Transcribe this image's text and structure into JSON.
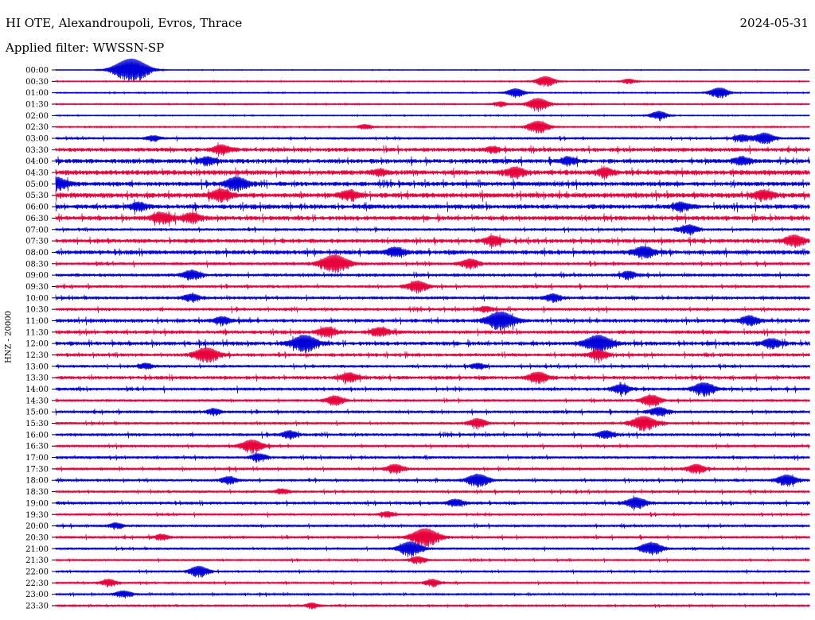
{
  "header": {
    "station": "HI OTE, Alexandroupoli, Evros, Thrace",
    "date": "2024-05-31",
    "filter": "Applied filter: WWSSN-SP"
  },
  "colors": {
    "odd": "#0000d8",
    "even": "#e8003c"
  },
  "chart_data": {
    "type": "line",
    "title": "HI OTE, Alexandroupoli, Evros, Thrace",
    "ylabel": "HNZ - 20000",
    "tick_labels": [
      "00:00",
      "00:30",
      "01:00",
      "01:30",
      "02:00",
      "02:30",
      "03:00",
      "03:30",
      "04:00",
      "04:30",
      "05:00",
      "05:30",
      "06:00",
      "06:30",
      "07:00",
      "07:30",
      "08:00",
      "08:30",
      "09:00",
      "09:30",
      "10:00",
      "10:30",
      "11:00",
      "11:30",
      "12:00",
      "12:30",
      "13:00",
      "13:30",
      "14:00",
      "14:30",
      "15:00",
      "15:30",
      "16:00",
      "16:30",
      "17:00",
      "17:30",
      "18:00",
      "18:30",
      "19:00",
      "19:30",
      "20:00",
      "20:30",
      "21:00",
      "21:30",
      "22:00",
      "22:30",
      "23:00",
      "23:30"
    ],
    "noise_level": [
      0.3,
      0.5,
      0.5,
      0.6,
      0.5,
      0.7,
      1.2,
      2.0,
      2.2,
      2.5,
      2.2,
      2.5,
      2.3,
      2.2,
      1.4,
      2.0,
      2.2,
      1.5,
      1.6,
      1.5,
      1.6,
      1.5,
      1.8,
      1.8,
      2.0,
      1.7,
      1.4,
      1.8,
      1.6,
      1.3,
      1.5,
      1.4,
      1.5,
      1.3,
      1.4,
      1.3,
      1.3,
      1.3,
      1.5,
      1.2,
      1.3,
      1.3,
      1.2,
      1.0,
      1.0,
      1.0,
      1.0,
      0.9
    ],
    "events": [
      [
        [
          0.1,
          14
        ]
      ],
      [
        [
          0.65,
          6
        ],
        [
          0.76,
          3
        ]
      ],
      [
        [
          0.61,
          5
        ],
        [
          0.88,
          6
        ]
      ],
      [
        [
          0.59,
          3
        ],
        [
          0.64,
          7
        ]
      ],
      [
        [
          0.8,
          5
        ]
      ],
      [
        [
          0.64,
          7
        ],
        [
          0.41,
          3
        ]
      ],
      [
        [
          0.94,
          6
        ],
        [
          0.91,
          4
        ],
        [
          0.13,
          3
        ]
      ],
      [
        [
          0.22,
          5
        ],
        [
          0.58,
          3
        ]
      ],
      [
        [
          0.2,
          4
        ],
        [
          0.68,
          4
        ],
        [
          0.91,
          4
        ]
      ],
      [
        [
          0.61,
          5
        ],
        [
          0.73,
          4
        ],
        [
          0.43,
          3
        ]
      ],
      [
        [
          0.0,
          7
        ],
        [
          0.24,
          7
        ]
      ],
      [
        [
          0.22,
          6
        ],
        [
          0.39,
          5
        ],
        [
          0.94,
          5
        ]
      ],
      [
        [
          0.11,
          4
        ],
        [
          0.83,
          4
        ]
      ],
      [
        [
          0.14,
          6
        ],
        [
          0.18,
          5
        ]
      ],
      [
        [
          0.84,
          5
        ]
      ],
      [
        [
          0.58,
          5
        ],
        [
          0.98,
          6
        ]
      ],
      [
        [
          0.45,
          5
        ],
        [
          0.78,
          6
        ]
      ],
      [
        [
          0.37,
          10
        ],
        [
          0.55,
          5
        ]
      ],
      [
        [
          0.18,
          5
        ],
        [
          0.76,
          4
        ]
      ],
      [
        [
          0.48,
          6
        ]
      ],
      [
        [
          0.18,
          4
        ],
        [
          0.66,
          4
        ]
      ],
      [
        [
          0.57,
          3
        ]
      ],
      [
        [
          0.59,
          10
        ],
        [
          0.22,
          4
        ],
        [
          0.92,
          5
        ]
      ],
      [
        [
          0.36,
          5
        ],
        [
          0.43,
          5
        ]
      ],
      [
        [
          0.33,
          9
        ],
        [
          0.72,
          9
        ],
        [
          0.95,
          5
        ]
      ],
      [
        [
          0.2,
          8
        ],
        [
          0.72,
          5
        ]
      ],
      [
        [
          0.12,
          3
        ],
        [
          0.56,
          3
        ]
      ],
      [
        [
          0.39,
          5
        ],
        [
          0.64,
          6
        ]
      ],
      [
        [
          0.75,
          5
        ],
        [
          0.86,
          7
        ]
      ],
      [
        [
          0.37,
          5
        ],
        [
          0.79,
          6
        ]
      ],
      [
        [
          0.21,
          3
        ],
        [
          0.8,
          5
        ]
      ],
      [
        [
          0.56,
          5
        ],
        [
          0.78,
          8
        ]
      ],
      [
        [
          0.31,
          4
        ],
        [
          0.73,
          4
        ]
      ],
      [
        [
          0.26,
          7
        ]
      ],
      [
        [
          0.27,
          4
        ]
      ],
      [
        [
          0.45,
          5
        ],
        [
          0.85,
          5
        ]
      ],
      [
        [
          0.23,
          4
        ],
        [
          0.56,
          7
        ],
        [
          0.97,
          6
        ]
      ],
      [
        [
          0.3,
          3
        ]
      ],
      [
        [
          0.53,
          4
        ],
        [
          0.77,
          6
        ]
      ],
      [
        [
          0.44,
          3
        ]
      ],
      [
        [
          0.08,
          3
        ]
      ],
      [
        [
          0.49,
          10
        ],
        [
          0.14,
          3
        ]
      ],
      [
        [
          0.47,
          8
        ],
        [
          0.79,
          7
        ]
      ],
      [
        [
          0.48,
          4
        ]
      ],
      [
        [
          0.19,
          6
        ]
      ],
      [
        [
          0.07,
          4
        ],
        [
          0.5,
          4
        ]
      ],
      [
        [
          0.09,
          4
        ]
      ],
      [
        [
          0.34,
          3
        ]
      ]
    ]
  }
}
